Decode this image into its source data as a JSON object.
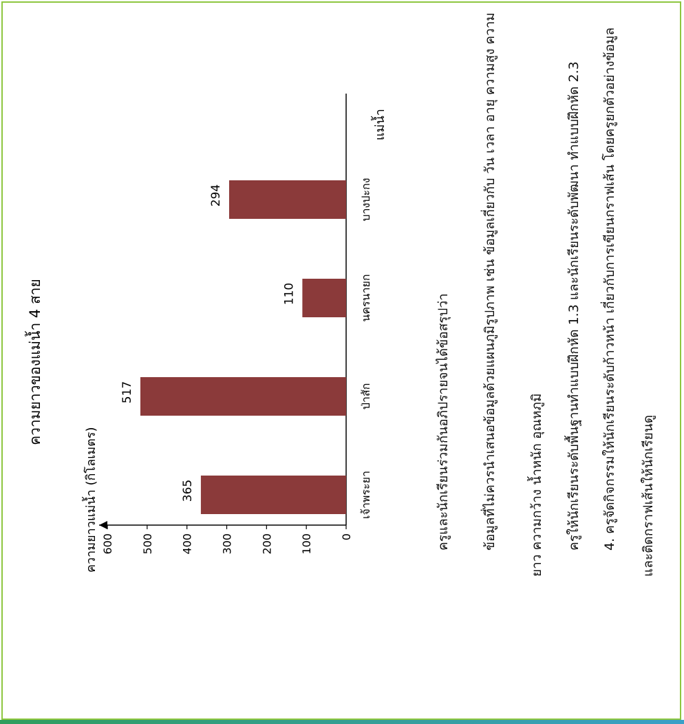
{
  "chart_data": {
    "type": "bar",
    "title": "ความยาวของแม่น้ำ 4 สาย",
    "ylabel": "ความยาวแม่น้ำ (กิโลเมตร)",
    "xlabel": "แม่น้ำ",
    "categories": [
      "เจ้าพระยา",
      "ป่าสัก",
      "นครนายก",
      "บางปะกง"
    ],
    "values": [
      365,
      517,
      110,
      294
    ],
    "value_labels": [
      "365",
      "517",
      "110",
      "294"
    ],
    "yticks": [
      "0",
      "100",
      "200",
      "300",
      "400",
      "500",
      "600"
    ],
    "ylim": [
      0,
      600
    ],
    "bar_color": "#8b3a3a"
  },
  "text": {
    "line1": "ครูและนักเรียนร่วมกันอภิปรายจนได้ข้อสรุปว่า",
    "line2": "ข้อมูลที่ไม่ควรนำเสนอข้อมูลด้วยแผนภูมิรูปภาพ เช่น ข้อมูลเกี่ยวกับ วัน เวลา อายุ ความสูง ความ",
    "line3": "ยาว ความกว้าง น้ำหนัก อุณหภูมิ",
    "line4": "ครูให้นักเรียนระดับพื้นฐานทำแบบฝึกหัด 1.3 และนักเรียนระดับพัฒนา ทำแบบฝึกหัด 2.3",
    "line5": "4. ครูจัดกิจกรรมให้นักเรียนระดับก้าวหน้า เกี่ยวกับการเขียนกราฟเส้น โดยครูยกตัวอย่างข้อมูล",
    "line6": "และติดกราฟเส้นให้นักเรียนดู"
  },
  "colors": {
    "border": "#8dc63f"
  }
}
